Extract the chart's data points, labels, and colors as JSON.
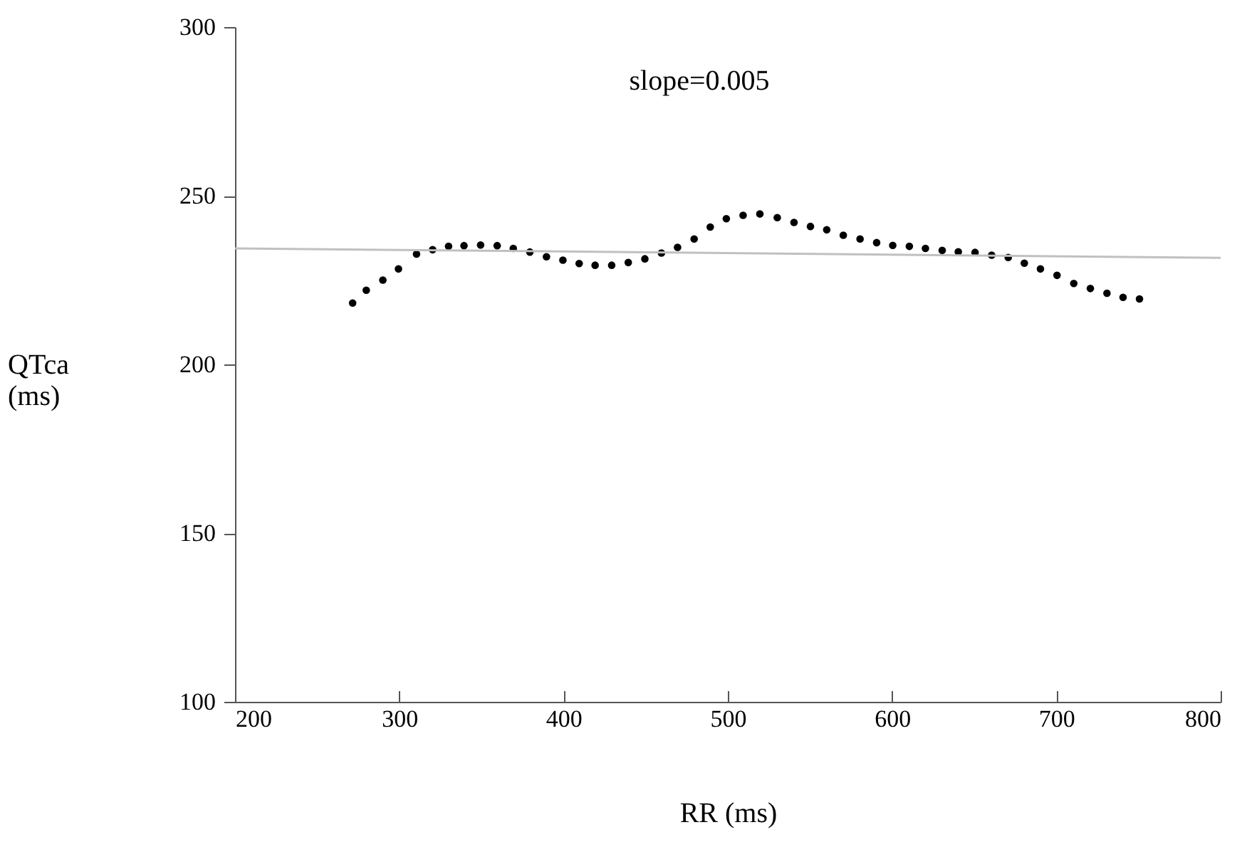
{
  "chart_data": {
    "type": "scatter",
    "xlabel": "RR (ms)",
    "ylabel": "QTca (ms)",
    "annotations": [
      "slope=0.005"
    ],
    "xlim": [
      200,
      800
    ],
    "ylim": [
      100,
      300
    ],
    "xticks": [
      200,
      300,
      400,
      500,
      600,
      700,
      800
    ],
    "yticks": [
      100,
      150,
      200,
      250,
      300
    ],
    "grid": false,
    "series": [
      {
        "marker": "circle",
        "color": "#000000",
        "x": [
          271.6,
          279.9,
          290,
          299.5,
          310.5,
          320.3,
          330,
          339.4,
          349.5,
          359.6,
          369.4,
          379.5,
          389.6,
          399.6,
          409.5,
          419.2,
          429.3,
          439.4,
          449.5,
          459.6,
          469.4,
          479.5,
          489.3,
          499.1,
          509.3,
          519.5,
          530.1,
          540.3,
          550.3,
          560.2,
          570.3,
          580.5,
          590.6,
          600.4,
          610.5,
          620.3,
          630.5,
          640.3,
          650.5,
          660.6,
          670.7,
          680.5,
          690.3,
          700.4,
          710.6,
          720.7,
          730.8,
          740.6,
          750.6
        ],
        "values": [
          218.2,
          222.0,
          225.0,
          228.3,
          232.7,
          234.0,
          235.0,
          235.2,
          235.4,
          235.2,
          234.4,
          233.3,
          231.9,
          230.9,
          229.9,
          229.4,
          229.4,
          230.2,
          231.3,
          233.0,
          234.7,
          237.2,
          240.7,
          243.2,
          244.2,
          244.6,
          243.5,
          242.1,
          240.9,
          239.9,
          238.3,
          237.2,
          236.1,
          235.3,
          235.0,
          234.4,
          233.8,
          233.4,
          233.2,
          232.4,
          231.7,
          230.0,
          228.3,
          226.4,
          224.0,
          222.5,
          221.1,
          219.9,
          219.4
        ]
      },
      {
        "type": "line",
        "color": "#c0c0c0",
        "x": [
          200,
          800
        ],
        "values": [
          234.4,
          231.6
        ]
      }
    ]
  }
}
